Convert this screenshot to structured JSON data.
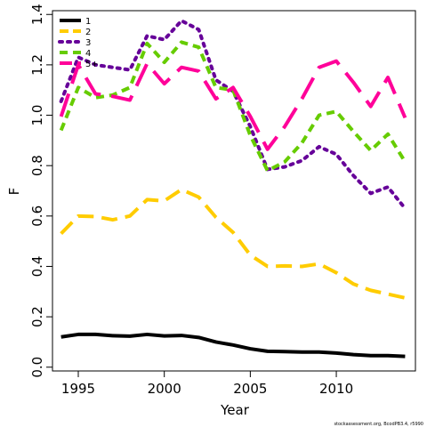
{
  "chart_data": {
    "type": "line",
    "title": "",
    "xlabel": "Year",
    "ylabel": "F",
    "xlim": [
      1993.5,
      2014.6
    ],
    "ylim": [
      -0.015,
      1.415
    ],
    "xticks": [
      1995,
      2000,
      2005,
      2010
    ],
    "xtick_labels": [
      "1995",
      "2000",
      "2005",
      "2010"
    ],
    "yticks": [
      0.0,
      0.2,
      0.4,
      0.6,
      0.8,
      1.0,
      1.2,
      1.4
    ],
    "ytick_labels": [
      "0.0",
      "0.2",
      "0.4",
      "0.6",
      "0.8",
      "1.0",
      "1.2",
      "1.4"
    ],
    "grid": false,
    "legend_position": "top-left",
    "x": [
      1994,
      1995,
      1996,
      1997,
      1998,
      1999,
      2000,
      2001,
      2002,
      2003,
      2004,
      2005,
      2006,
      2007,
      2008,
      2009,
      2010,
      2011,
      2012,
      2013,
      2014
    ],
    "series": [
      {
        "name": "1",
        "color": "#000000",
        "dash": "solid",
        "values": [
          0.12,
          0.13,
          0.13,
          0.125,
          0.123,
          0.13,
          0.124,
          0.126,
          0.118,
          0.1,
          0.088,
          0.073,
          0.063,
          0.062,
          0.06,
          0.06,
          0.056,
          0.05,
          0.046,
          0.046,
          0.043
        ]
      },
      {
        "name": "2",
        "color": "#ffcc00",
        "dash": "long",
        "values": [
          0.53,
          0.6,
          0.598,
          0.585,
          0.6,
          0.665,
          0.66,
          0.705,
          0.675,
          0.595,
          0.535,
          0.445,
          0.4,
          0.402,
          0.4,
          0.41,
          0.375,
          0.33,
          0.305,
          0.29,
          0.275
        ]
      },
      {
        "name": "3",
        "color": "#660099",
        "dash": "dotted",
        "values": [
          1.055,
          1.23,
          1.2,
          1.19,
          1.18,
          1.315,
          1.3,
          1.375,
          1.34,
          1.14,
          1.095,
          0.955,
          0.785,
          0.795,
          0.82,
          0.875,
          0.845,
          0.76,
          0.69,
          0.715,
          0.63
        ]
      },
      {
        "name": "4",
        "color": "#66cc00",
        "dash": "short",
        "values": [
          0.94,
          1.11,
          1.07,
          1.08,
          1.11,
          1.285,
          1.21,
          1.29,
          1.27,
          1.11,
          1.1,
          0.92,
          0.78,
          0.815,
          0.89,
          1.0,
          1.015,
          0.935,
          0.86,
          0.925,
          0.815
        ]
      },
      {
        "name": "5+",
        "color": "#ff0099",
        "dash": "longdash",
        "values": [
          0.995,
          1.2,
          1.085,
          1.075,
          1.06,
          1.205,
          1.125,
          1.19,
          1.175,
          1.065,
          1.11,
          0.995,
          0.865,
          0.955,
          1.065,
          1.19,
          1.215,
          1.13,
          1.035,
          1.15,
          0.99
        ]
      }
    ],
    "credit": "stockassessment.org, BcodPB3.4, r5990"
  }
}
